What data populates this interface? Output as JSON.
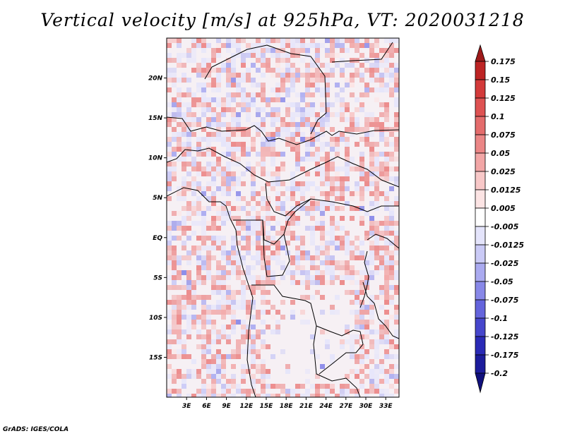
{
  "chart_data": {
    "type": "heatmap",
    "title": "Vertical velocity [m/s] at 925hPa, VT: 2020031218",
    "xlabel": "",
    "ylabel": "",
    "x_ticks": [
      "3E",
      "6E",
      "9E",
      "12E",
      "15E",
      "18E",
      "21E",
      "24E",
      "27E",
      "30E",
      "33E"
    ],
    "x_tick_values": [
      3,
      6,
      9,
      12,
      15,
      18,
      21,
      24,
      27,
      30,
      33
    ],
    "y_ticks": [
      "20N",
      "15N",
      "10N",
      "5N",
      "EQ",
      "5S",
      "10S",
      "15S"
    ],
    "y_tick_values": [
      20,
      15,
      10,
      5,
      0,
      -5,
      -10,
      -15
    ],
    "xlim": [
      0,
      35
    ],
    "ylim": [
      -20,
      25
    ],
    "colorbar": {
      "labels": [
        "0.175",
        "0.15",
        "0.125",
        "0.1",
        "0.075",
        "0.05",
        "0.025",
        "0.0125",
        "0.005",
        "-0.005",
        "-0.0125",
        "-0.025",
        "-0.05",
        "-0.075",
        "-0.1",
        "-0.125",
        "-0.175",
        "-0.2"
      ],
      "colors": [
        "#9e1a1a",
        "#bd2424",
        "#d33a3a",
        "#de5252",
        "#e46c6c",
        "#eb8686",
        "#f2a6a6",
        "#f8c8c8",
        "#fce4e4",
        "#ffffff",
        "#e4e4fb",
        "#cacaf6",
        "#aaaaf0",
        "#8888e8",
        "#6464dc",
        "#4646cc",
        "#2a2ab6",
        "#1c1c9c",
        "#10107c"
      ]
    },
    "field_unit": "m/s",
    "level": "925hPa",
    "valid_time": "2020031218"
  },
  "credit": "GrADS: IGES/COLA"
}
